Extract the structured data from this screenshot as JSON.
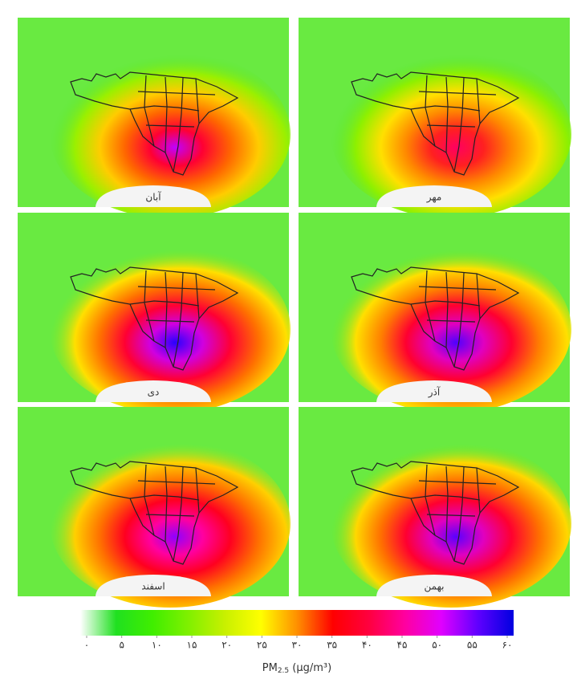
{
  "panels": [
    {
      "label": "آبان",
      "colors": [
        "#c000ff",
        "#ff0033",
        "#ff6600",
        "#ffcc00",
        "#9af000",
        "#55e630"
      ]
    },
    {
      "label": "مهر",
      "colors": [
        "#ff0060",
        "#ff2020",
        "#ff8800",
        "#ffe000",
        "#8ef000",
        "#55e630"
      ]
    },
    {
      "label": "دی",
      "colors": [
        "#2a00ff",
        "#d000e0",
        "#ff0033",
        "#ff7000",
        "#ffe000",
        "#80e820"
      ]
    },
    {
      "label": "آذر",
      "colors": [
        "#5000ff",
        "#e000c0",
        "#ff0030",
        "#ff8000",
        "#ffe000",
        "#70e820"
      ]
    },
    {
      "label": "اسفند",
      "colors": [
        "#9000ff",
        "#ff00a0",
        "#ff0020",
        "#ff7000",
        "#ffd000",
        "#90e820"
      ]
    },
    {
      "label": "بهمن",
      "colors": [
        "#5a00ff",
        "#e000c0",
        "#ff0030",
        "#ff7000",
        "#ffd800",
        "#70e820"
      ]
    }
  ],
  "colorbar": {
    "colors": [
      "#ffffff",
      "#20e020",
      "#40ee00",
      "#80f000",
      "#c8f000",
      "#ffff00",
      "#ff9000",
      "#ff0000",
      "#ff0040",
      "#ff00a0",
      "#e000ff",
      "#6000ff",
      "#0000e0"
    ],
    "ticks": [
      {
        "value": 0,
        "label": "۰"
      },
      {
        "value": 5,
        "label": "۵"
      },
      {
        "value": 10,
        "label": "۱۰"
      },
      {
        "value": 15,
        "label": "۱۵"
      },
      {
        "value": 20,
        "label": "۲۰"
      },
      {
        "value": 25,
        "label": "۲۵"
      },
      {
        "value": 30,
        "label": "۳۰"
      },
      {
        "value": 35,
        "label": "۳۵"
      },
      {
        "value": 40,
        "label": "۴۰"
      },
      {
        "value": 45,
        "label": "۴۵"
      },
      {
        "value": 50,
        "label": "۵۰"
      },
      {
        "value": 55,
        "label": "۵۵"
      },
      {
        "value": 60,
        "label": "۶۰"
      }
    ],
    "lim": [
      0,
      60
    ],
    "label": {
      "main": "PM",
      "sub": "2.5",
      "unit": " (µg/m³)"
    }
  }
}
